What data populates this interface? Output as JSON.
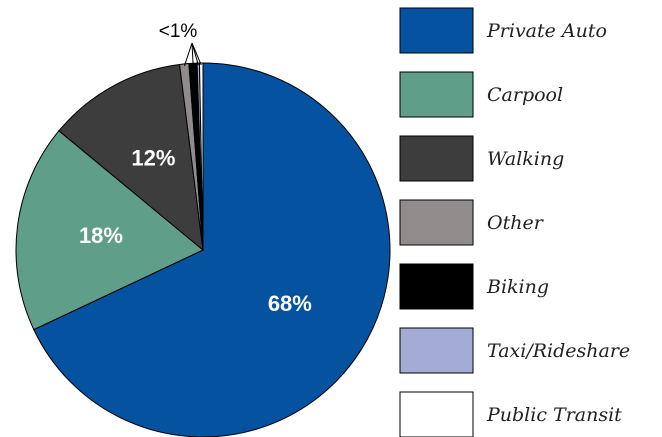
{
  "chart_data": {
    "type": "pie",
    "categories": [
      "Private Auto",
      "Carpool",
      "Walking",
      "Other",
      "Biking",
      "Taxi/Rideshare",
      "Public Transit"
    ],
    "values": [
      68,
      18,
      12,
      0.8,
      0.7,
      0.2,
      0.3
    ],
    "value_labels": [
      "68%",
      "18%",
      "12%",
      null,
      null,
      null,
      null
    ],
    "colors": [
      "#0552a0",
      "#5f9e88",
      "#3d3d3d",
      "#8f8c8b",
      "#000000",
      "#a3acd4",
      "#ffffff"
    ],
    "annotation": "<1%",
    "legend": "right"
  }
}
